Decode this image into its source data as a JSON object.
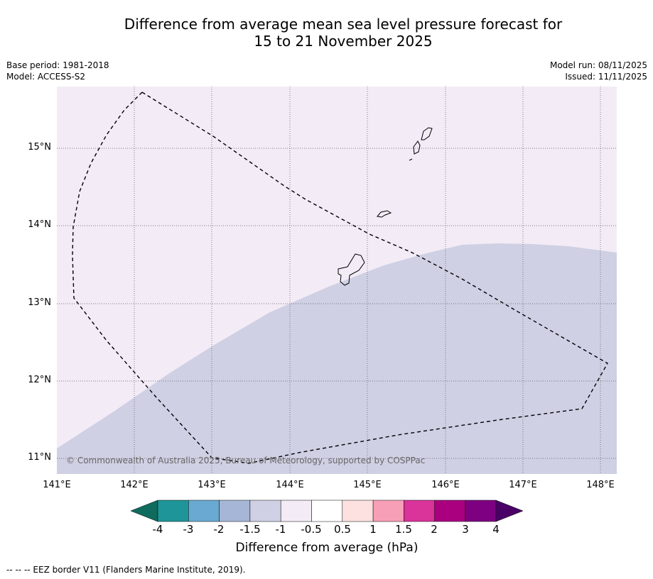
{
  "title_line1": "Difference from average mean sea level pressure forecast for",
  "title_line2": "15 to 21 November 2025",
  "meta_left": {
    "base_period": "Base period: 1981-2018",
    "model": "Model: ACCESS-S2"
  },
  "meta_right": {
    "model_run": "Model run: 08/11/2025",
    "issued": "Issued: 11/11/2025"
  },
  "map": {
    "lat_ticks": [
      "15°N",
      "14°N",
      "13°N",
      "12°N",
      "11°N"
    ],
    "lon_ticks": [
      "141°E",
      "142°E",
      "143°E",
      "144°E",
      "145°E",
      "146°E",
      "147°E",
      "148°E"
    ],
    "copyright": "© Commonwealth of Australia 2025, Bureau of Meteorology, supported by COSPPac",
    "fill_colors": {
      "minus_1_to_minus_0_5": "#f3ebf5",
      "minus_1_5_to_minus_1": "#cfd0e4"
    },
    "grid": true
  },
  "colorbar": {
    "labels": [
      "-4",
      "-3",
      "-2",
      "-1.5",
      "-1",
      "-0.5",
      "0.5",
      "1",
      "1.5",
      "2",
      "3",
      "4"
    ],
    "colors": [
      "#0f6b5d",
      "#1e9598",
      "#6aaad2",
      "#a6b6d6",
      "#cfd0e4",
      "#f3ebf5",
      "#ffffff",
      "#fde0e0",
      "#f89fb8",
      "#da339a",
      "#aa0080",
      "#7d0080",
      "#4a0067"
    ],
    "title": "Difference from average (hPa)"
  },
  "footer": "--  --  -- EEZ border V11 (Flanders Marine Institute, 2019)."
}
